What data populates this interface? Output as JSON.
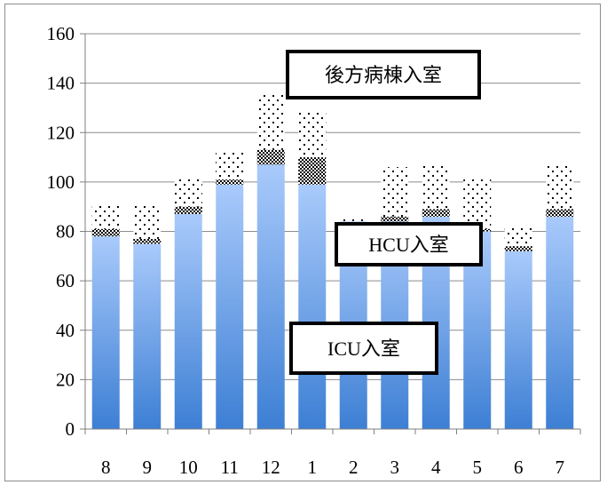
{
  "chart_data": {
    "type": "bar",
    "stacked": true,
    "categories": [
      "8",
      "9",
      "10",
      "11",
      "12",
      "1",
      "2",
      "3",
      "4",
      "5",
      "6",
      "7"
    ],
    "series": [
      {
        "name": "ICU入室",
        "pattern": "gradient-blue",
        "values": [
          78,
          75,
          87,
          99,
          107,
          99,
          84,
          84,
          86,
          80,
          72,
          86
        ]
      },
      {
        "name": "HCU入室",
        "pattern": "checker",
        "values": [
          3,
          2,
          3,
          2,
          6,
          11,
          0,
          2,
          3,
          1,
          2,
          3
        ]
      },
      {
        "name": "後方病棟入室",
        "pattern": "dots",
        "values": [
          10,
          14,
          12,
          11,
          23,
          18,
          1,
          20,
          18,
          21,
          8,
          18
        ]
      }
    ],
    "ylim": [
      0,
      160
    ],
    "yticks": [
      0,
      20,
      40,
      60,
      80,
      100,
      120,
      140,
      160
    ],
    "grid": true,
    "annotations": [
      {
        "text": "後方病棟入室",
        "series": "後方病棟入室"
      },
      {
        "text": "HCU入室",
        "series": "HCU入室"
      },
      {
        "text": "ICU入室",
        "series": "ICU入室"
      }
    ],
    "colors": {
      "bar_top": "#a9cafb",
      "bar_bottom": "#3d7fd4",
      "grid": "#8c8c8c",
      "axis": "#7f7f7f"
    }
  }
}
